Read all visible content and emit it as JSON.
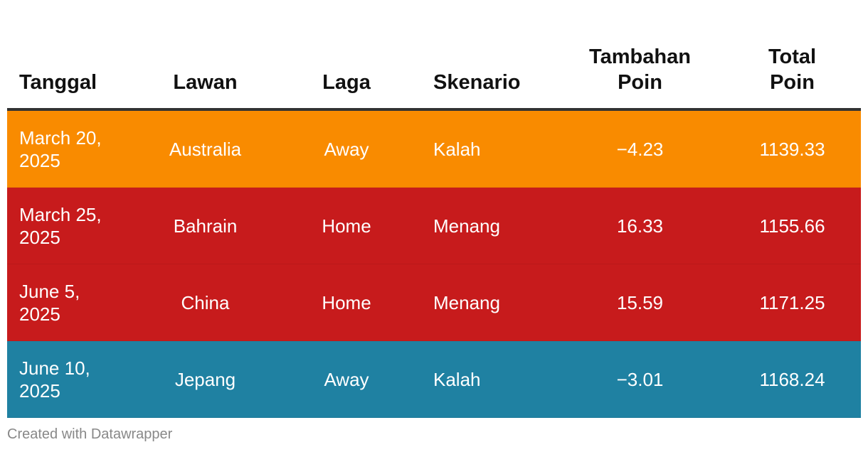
{
  "chart_data": {
    "type": "table",
    "columns": [
      "Tanggal",
      "Lawan",
      "Laga",
      "Skenario",
      "Tambahan Poin",
      "Total Poin"
    ],
    "rows": [
      {
        "tanggal": "March 20, 2025",
        "lawan": "Australia",
        "laga": "Away",
        "skenario": "Kalah",
        "tambahan": "−4.23",
        "total": "1139.33",
        "color": "#f98b00"
      },
      {
        "tanggal": "March 25, 2025",
        "lawan": "Bahrain",
        "laga": "Home",
        "skenario": "Menang",
        "tambahan": "16.33",
        "total": "1155.66",
        "color": "#c71b1c"
      },
      {
        "tanggal": "June 5, 2025",
        "lawan": "China",
        "laga": "Home",
        "skenario": "Menang",
        "tambahan": "15.59",
        "total": "1171.25",
        "color": "#c71b1c"
      },
      {
        "tanggal": "June 10, 2025",
        "lawan": "Jepang",
        "laga": "Away",
        "skenario": "Kalah",
        "tambahan": "−3.01",
        "total": "1168.24",
        "color": "#1f81a2"
      }
    ]
  },
  "credit": "Created with Datawrapper"
}
